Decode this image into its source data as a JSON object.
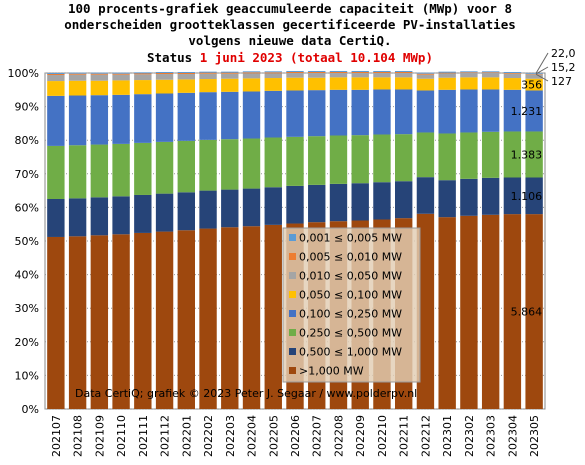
{
  "chart_data": {
    "type": "stacked_bar_percent",
    "title_lines": [
      "100 procents-grafiek geaccumuleerde capaciteit (MWp) voor 8",
      "onderscheiden grootteklassen gecertificeerde PV-installaties",
      "volgens nieuwe data CertiQ."
    ],
    "status": "Status",
    "status_highlight": "1 juni 2023 (totaal 10.104 MWp)",
    "credit": "Data CertiQ; grafiek © 2023 Peter J. Segaar / www.polderpv.nl",
    "categories": [
      "202107",
      "202108",
      "202109",
      "202110",
      "202111",
      "202112",
      "202201",
      "202202",
      "202203",
      "202204",
      "202205",
      "202206",
      "202207",
      "202208",
      "202209",
      "202210",
      "202211",
      "202212",
      "202301",
      "202302",
      "202303",
      "202304",
      "202305"
    ],
    "series": [
      {
        "name": ">1,000 MW",
        "color": "#9E480E",
        "values": [
          51.2,
          51.4,
          51.7,
          52.0,
          52.4,
          52.8,
          53.2,
          53.7,
          54.1,
          54.4,
          54.8,
          55.2,
          55.6,
          55.9,
          56.1,
          56.4,
          56.8,
          58.1,
          57.1,
          57.5,
          57.8,
          58.0,
          58.0
        ]
      },
      {
        "name": "0,500 ≤  1,000 MW",
        "color": "#264478",
        "values": [
          11.3,
          11.3,
          11.3,
          11.3,
          11.3,
          11.3,
          11.3,
          11.3,
          11.2,
          11.2,
          11.2,
          11.2,
          11.1,
          11.1,
          11.1,
          11.1,
          11.0,
          10.9,
          11.0,
          11.0,
          11.0,
          10.9,
          10.9
        ]
      },
      {
        "name": "0,250 ≤  0,500 MW",
        "color": "#70AD47",
        "values": [
          15.8,
          15.8,
          15.7,
          15.6,
          15.5,
          15.4,
          15.3,
          15.1,
          15.0,
          14.9,
          14.8,
          14.6,
          14.5,
          14.4,
          14.3,
          14.2,
          14.0,
          13.3,
          13.9,
          13.8,
          13.7,
          13.7,
          13.7
        ]
      },
      {
        "name": "0,100 ≤  0,250 MW",
        "color": "#4472C4",
        "values": [
          14.9,
          14.8,
          14.7,
          14.6,
          14.5,
          14.4,
          14.3,
          14.2,
          14.1,
          14.0,
          13.9,
          13.8,
          13.7,
          13.6,
          13.5,
          13.4,
          13.3,
          12.5,
          13.0,
          12.8,
          12.6,
          12.4,
          12.2
        ]
      },
      {
        "name": "0,050 ≤  0,100 MW",
        "color": "#FFC000",
        "values": [
          4.4,
          4.4,
          4.3,
          4.3,
          4.2,
          4.1,
          4.0,
          3.9,
          3.9,
          3.9,
          3.8,
          3.8,
          3.7,
          3.7,
          3.7,
          3.6,
          3.6,
          3.5,
          3.6,
          3.6,
          3.6,
          3.5,
          3.5
        ]
      },
      {
        "name": "0,010 ≤  0,050 MW",
        "color": "#A5A5A5",
        "values": [
          1.8,
          1.8,
          1.8,
          1.7,
          1.7,
          1.7,
          1.6,
          1.6,
          1.5,
          1.5,
          1.4,
          1.4,
          1.4,
          1.3,
          1.3,
          1.3,
          1.3,
          1.2,
          1.3,
          1.3,
          1.3,
          1.3,
          1.3
        ]
      },
      {
        "name": "0,005 ≤  0,010 MW",
        "color": "#ED7D31",
        "values": [
          0.3,
          0.3,
          0.3,
          0.3,
          0.3,
          0.3,
          0.3,
          0.3,
          0.3,
          0.3,
          0.3,
          0.3,
          0.3,
          0.3,
          0.3,
          0.3,
          0.3,
          0.3,
          0.2,
          0.2,
          0.2,
          0.2,
          0.15
        ]
      },
      {
        "name": "0,001 ≤  0,005 MW",
        "color": "#5B9BD5",
        "values": [
          0.3,
          0.3,
          0.3,
          0.3,
          0.3,
          0.3,
          0.3,
          0.3,
          0.3,
          0.3,
          0.3,
          0.3,
          0.3,
          0.3,
          0.3,
          0.3,
          0.3,
          0.3,
          0.3,
          0.3,
          0.3,
          0.3,
          0.22
        ]
      }
    ],
    "last_bar_labels": [
      "5.864",
      "1.106",
      "1.383",
      "1.231",
      "356",
      "127",
      "15,2",
      "22,0"
    ],
    "ylim": [
      0,
      100
    ],
    "yticks": [
      {
        "value": 0,
        "label": "0%"
      },
      {
        "value": 10,
        "label": "10%"
      },
      {
        "value": 20,
        "label": "20%"
      },
      {
        "value": 30,
        "label": "30%"
      },
      {
        "value": 40,
        "label": "40%"
      },
      {
        "value": 50,
        "label": "50%"
      },
      {
        "value": 60,
        "label": "60%"
      },
      {
        "value": 70,
        "label": "70%"
      },
      {
        "value": 80,
        "label": "80%"
      },
      {
        "value": 90,
        "label": "90%"
      },
      {
        "value": 100,
        "label": "100%"
      }
    ],
    "grid": true
  }
}
